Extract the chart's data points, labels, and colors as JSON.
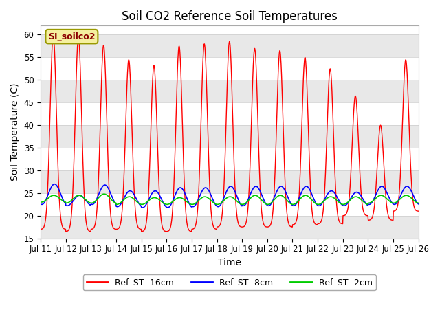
{
  "title": "Soil CO2 Reference Soil Temperatures",
  "xlabel": "Time",
  "ylabel": "Soil Temperature (C)",
  "ylim": [
    15,
    62
  ],
  "yticks": [
    15,
    20,
    25,
    30,
    35,
    40,
    45,
    50,
    55,
    60
  ],
  "legend_labels": [
    "Ref_ST -16cm",
    "Ref_ST -8cm",
    "Ref_ST -2cm"
  ],
  "legend_colors": [
    "#ff0000",
    "#0000ff",
    "#00cc00"
  ],
  "site_label": "SI_soilco2",
  "n_days": 15,
  "start_day": 11,
  "background_color": "#ffffff",
  "band_color": "#e8e8e8",
  "title_fontsize": 12,
  "axis_label_fontsize": 10,
  "tick_label_fontsize": 8.5,
  "red_peaks": [
    60,
    59.5,
    57.7,
    54.5,
    53.2,
    57.5,
    58,
    58.5,
    57,
    56.5,
    55,
    52.5,
    46.5,
    40,
    54.5
  ],
  "red_troughs": [
    17,
    16.5,
    17,
    17,
    16.5,
    16.5,
    17,
    17.5,
    17.5,
    17.5,
    18,
    18.2,
    20,
    19,
    21
  ],
  "blue_peaks": [
    27,
    24.5,
    26.8,
    25.5,
    25.5,
    26.2,
    26.2,
    26.5,
    26.5,
    26.5,
    26.5,
    25.5,
    25.2,
    26.5,
    26.5
  ],
  "blue_troughs": [
    22.5,
    22.2,
    22.5,
    22.0,
    21.8,
    21.8,
    22.0,
    22.0,
    22.2,
    22.2,
    22.2,
    22.2,
    22.2,
    22.5,
    22.5
  ],
  "green_peaks": [
    24.5,
    24.5,
    24.8,
    24.2,
    24.0,
    24.0,
    24.2,
    24.2,
    24.5,
    24.5,
    24.5,
    24.2,
    24.2,
    24.5,
    24.5
  ],
  "green_troughs": [
    23.0,
    22.8,
    22.8,
    22.5,
    22.5,
    22.5,
    22.5,
    22.5,
    22.5,
    22.5,
    22.5,
    22.5,
    22.5,
    22.8,
    22.8
  ]
}
